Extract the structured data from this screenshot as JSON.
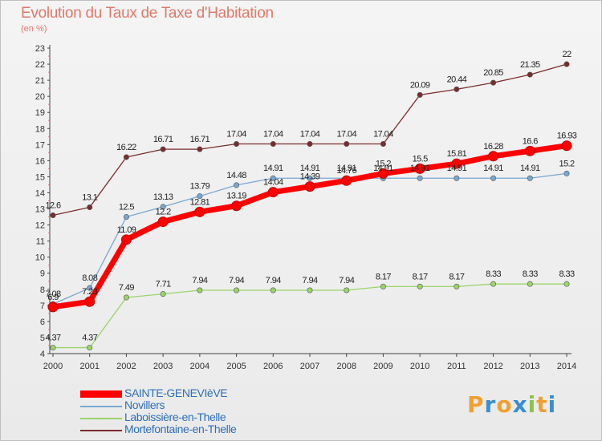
{
  "chart_data": {
    "type": "line",
    "title": "Evolution du Taux de Taxe d'Habitation",
    "subtitle": "(en %)",
    "x": [
      2000,
      2001,
      2002,
      2003,
      2004,
      2005,
      2006,
      2007,
      2008,
      2009,
      2010,
      2011,
      2012,
      2013,
      2014
    ],
    "ylim": [
      4,
      23
    ],
    "yticks": [
      4,
      5,
      6,
      7,
      8,
      9,
      10,
      11,
      12,
      13,
      14,
      15,
      16,
      17,
      18,
      19,
      20,
      21,
      22,
      23
    ],
    "grid": false,
    "legend_position": "bottom-left",
    "series": [
      {
        "name": "SAINTE-GENEVIèVE",
        "color": "#ff0000",
        "values": [
          6.9,
          7.23,
          11.09,
          12.2,
          12.81,
          13.19,
          14.04,
          14.39,
          14.76,
          15.2,
          15.5,
          15.81,
          16.28,
          16.6,
          16.93
        ]
      },
      {
        "name": "Novillers",
        "color": "#79a7d2",
        "values": [
          7.08,
          8.08,
          12.5,
          13.13,
          13.79,
          14.48,
          14.91,
          14.91,
          14.91,
          14.91,
          14.91,
          14.91,
          14.91,
          14.91,
          15.2
        ]
      },
      {
        "name": "Laboissière-en-Thelle",
        "color": "#9bd46a",
        "values": [
          4.37,
          4.37,
          7.49,
          7.71,
          7.94,
          7.94,
          7.94,
          7.94,
          7.94,
          8.17,
          8.17,
          8.17,
          8.33,
          8.33,
          8.33
        ]
      },
      {
        "name": "Mortefontaine-en-Thelle",
        "color": "#7b2c2c",
        "values": [
          12.6,
          13.1,
          16.22,
          16.71,
          16.71,
          17.04,
          17.04,
          17.04,
          17.04,
          17.04,
          20.09,
          20.44,
          20.85,
          21.35,
          22
        ]
      }
    ]
  },
  "logo": {
    "letters": [
      "P",
      "r",
      "o",
      "x",
      "i",
      "t",
      "i"
    ],
    "colors": [
      "#f0a030",
      "#3a8fd0",
      "#f0a030",
      "#3a8fd0",
      "#8bc34a",
      "#f0a030",
      "#3a8fd0"
    ]
  }
}
